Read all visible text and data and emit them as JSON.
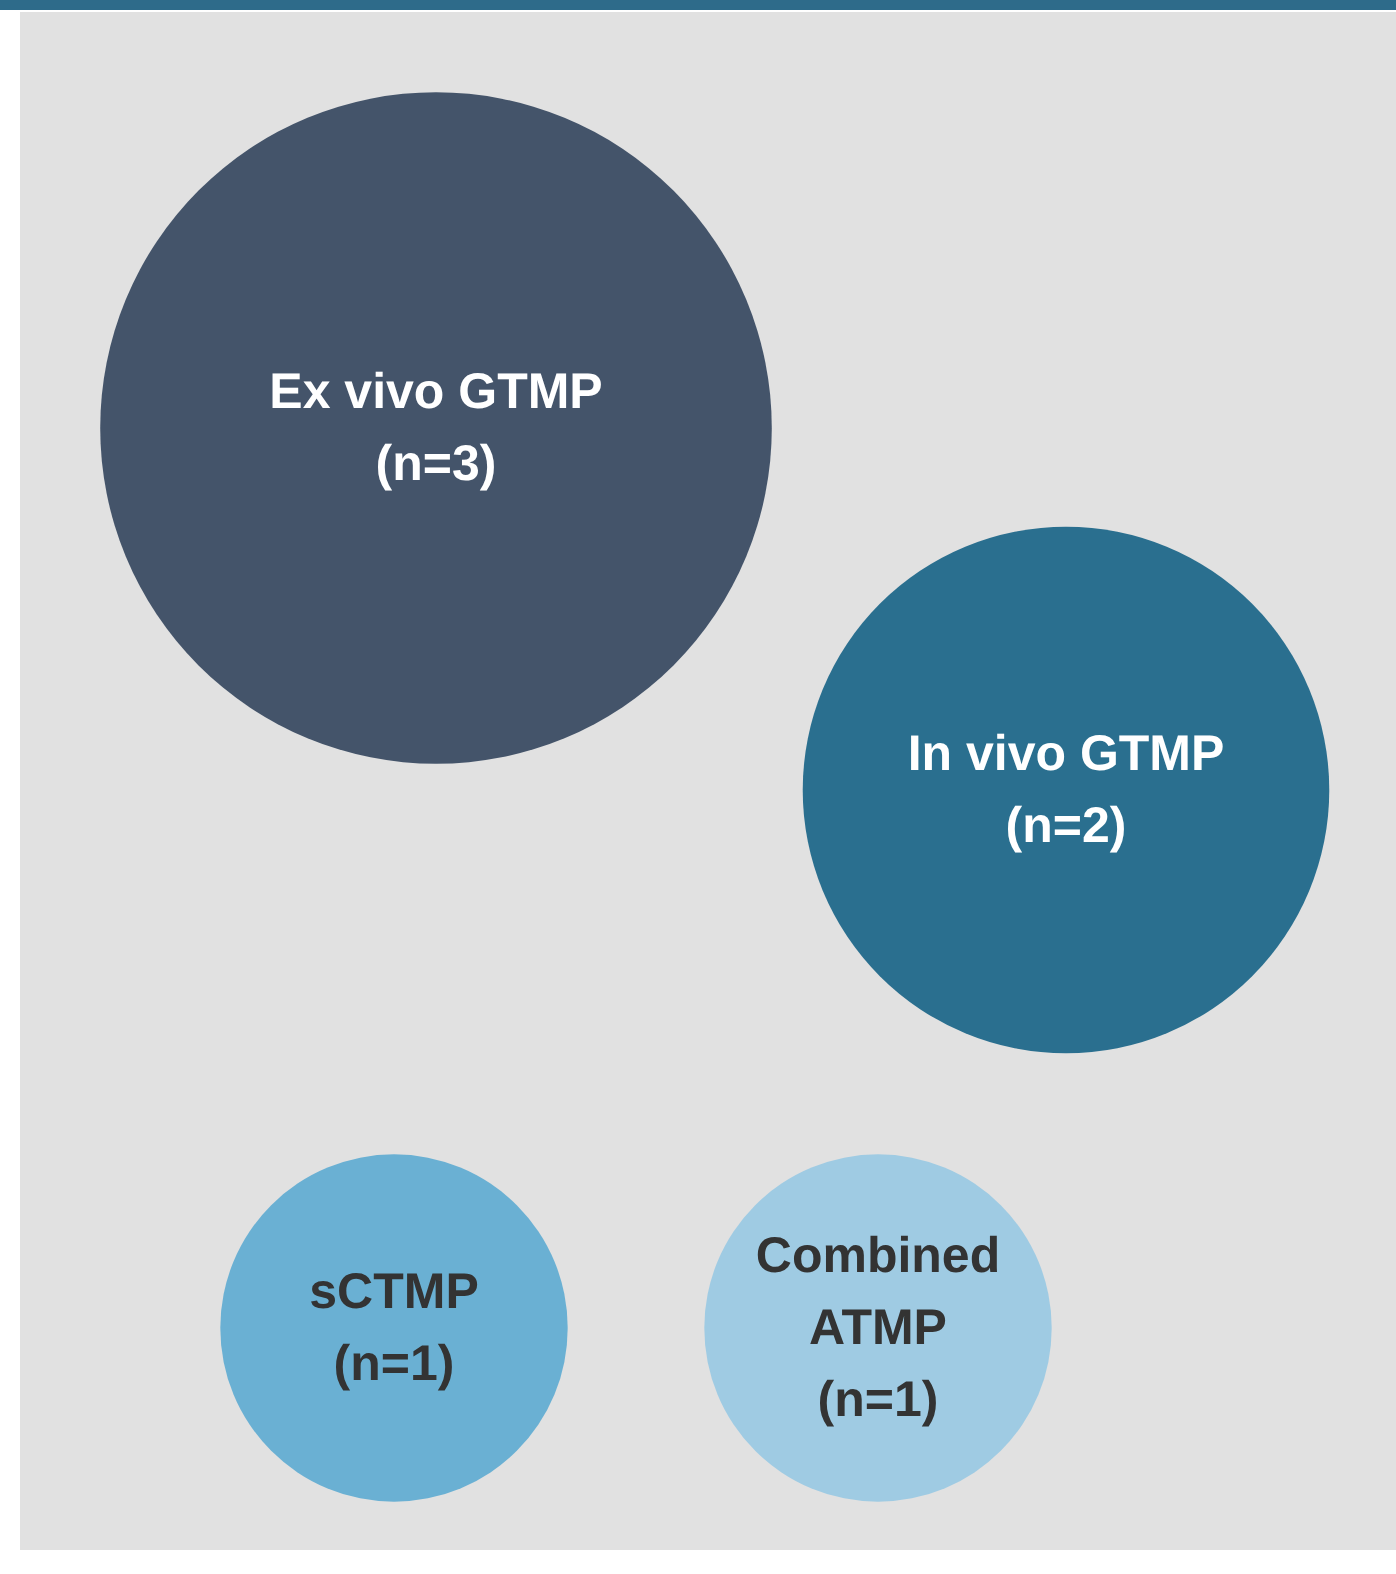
{
  "chart_data": {
    "type": "other",
    "categories": [
      "Ex vivo GTMP",
      "In vivo GTMP",
      "sCTMP",
      "Combined ATMP"
    ],
    "values": [
      3,
      2,
      1,
      1
    ],
    "value_labels": [
      "(n=3)",
      "(n=2)",
      "(n=1)",
      "(n=1)"
    ],
    "colors": [
      "#44546a",
      "#2a6f8f",
      "#6ab0d3",
      "#9fcbe3"
    ]
  }
}
